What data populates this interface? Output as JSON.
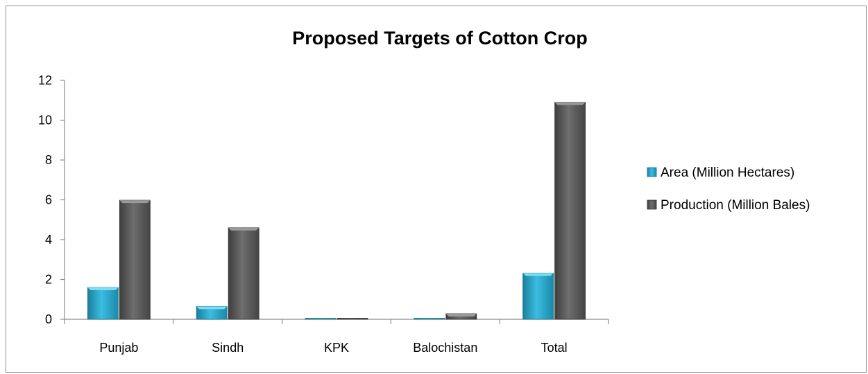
{
  "chart_data": {
    "type": "bar",
    "title": "Proposed Targets of Cotton Crop",
    "categories": [
      "Punjab",
      "Sindh",
      "KPK",
      "Balochistan",
      "Total"
    ],
    "series": [
      {
        "name": "Area (Million Hectares)",
        "values": [
          1.6,
          0.65,
          0.01,
          0.04,
          2.32
        ],
        "color": "#2aa3c4"
      },
      {
        "name": "Production (Million Bales)",
        "values": [
          5.98,
          4.6,
          0.0,
          0.28,
          10.9
        ],
        "color": "#595959"
      }
    ],
    "ylim": [
      0,
      12
    ],
    "yticks": [
      "0",
      "2",
      "4",
      "6",
      "8",
      "10",
      "12"
    ],
    "grid": false,
    "legend_position": "right"
  }
}
